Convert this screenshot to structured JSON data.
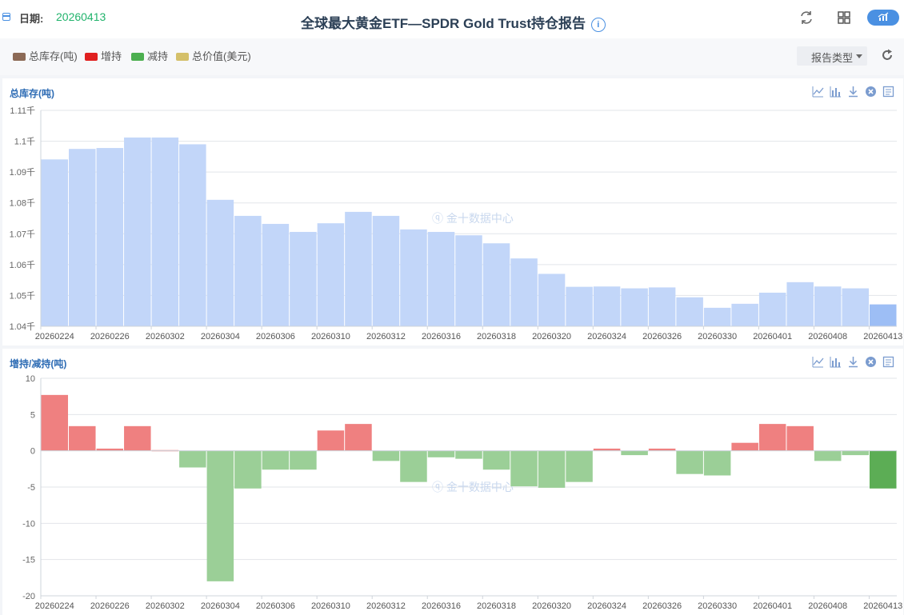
{
  "header": {
    "date_label": "日期:",
    "date_value": "20260413",
    "title": "全球最大黄金ETF—SPDR Gold Trust持仓报告",
    "info_symbol": "i"
  },
  "legend": {
    "items": [
      {
        "label": "总库存(吨)",
        "color": "#8c6a56"
      },
      {
        "label": "增持",
        "color": "#e02020"
      },
      {
        "label": "减持",
        "color": "#4caf50"
      },
      {
        "label": "总价值(美元)",
        "color": "#d4c06a"
      }
    ],
    "report_type": "报告类型"
  },
  "watermark": "金十数据中心",
  "colors": {
    "accent": "#4a90e2",
    "bar": "#c2d6f9",
    "bar_last": "#9dbef5",
    "increase": "#ef8080",
    "decrease": "#9bcf97",
    "decrease_last": "#5cad55",
    "title": "#2f6db5"
  },
  "icons": [
    "refresh-icon",
    "grid-icon",
    "chart-toggle-icon",
    "reload-icon",
    "line-chart-icon",
    "bar-chart-icon",
    "download-icon",
    "close-icon",
    "data-view-icon"
  ],
  "chart_data": [
    {
      "type": "bar",
      "title": "总库存(吨)",
      "x": [
        "20260224",
        "20260225",
        "20260226",
        "20260227",
        "20260302",
        "20260303",
        "20260304",
        "20260305",
        "20260306",
        "20260309",
        "20260310",
        "20260311",
        "20260312",
        "20260313",
        "20260316",
        "20260317",
        "20260318",
        "20260319",
        "20260320",
        "20260323",
        "20260324",
        "20260325",
        "20260326",
        "20260327",
        "20260330",
        "20260331",
        "20260401",
        "20260402",
        "20260408",
        "20260409",
        "20260413"
      ],
      "x_tick_labels": [
        "20260224",
        "20260226",
        "20260302",
        "20260304",
        "20260306",
        "20260310",
        "20260312",
        "20260316",
        "20260318",
        "20260320",
        "20260324",
        "20260326",
        "20260330",
        "20260401",
        "20260408",
        "20260413"
      ],
      "values": [
        1094.1,
        1097.5,
        1097.8,
        1101.2,
        1101.2,
        1099.0,
        1081.0,
        1075.8,
        1073.2,
        1070.6,
        1073.4,
        1077.1,
        1075.8,
        1071.4,
        1070.6,
        1069.5,
        1066.9,
        1062.0,
        1057.0,
        1052.8,
        1052.9,
        1052.3,
        1052.6,
        1049.4,
        1046.0,
        1047.3,
        1050.9,
        1054.3,
        1052.9,
        1052.3,
        1047.1
      ],
      "y_ticks": [
        "1.04千",
        "1.05千",
        "1.06千",
        "1.07千",
        "1.08千",
        "1.09千",
        "1.1千",
        "1.11千"
      ],
      "ylim": [
        1040,
        1110
      ],
      "grid": true
    },
    {
      "type": "bar",
      "title": "增持/减持(吨)",
      "x": [
        "20260224",
        "20260225",
        "20260226",
        "20260227",
        "20260302",
        "20260303",
        "20260304",
        "20260305",
        "20260306",
        "20260309",
        "20260310",
        "20260311",
        "20260312",
        "20260313",
        "20260316",
        "20260317",
        "20260318",
        "20260319",
        "20260320",
        "20260323",
        "20260324",
        "20260325",
        "20260326",
        "20260327",
        "20260330",
        "20260331",
        "20260401",
        "20260402",
        "20260408",
        "20260409",
        "20260413"
      ],
      "x_tick_labels": [
        "20260224",
        "20260226",
        "20260302",
        "20260304",
        "20260306",
        "20260310",
        "20260312",
        "20260316",
        "20260318",
        "20260320",
        "20260324",
        "20260326",
        "20260330",
        "20260401",
        "20260408",
        "20260413"
      ],
      "values": [
        7.7,
        3.4,
        0.3,
        3.4,
        0.1,
        -2.3,
        -18.0,
        -5.2,
        -2.6,
        -2.6,
        2.8,
        3.7,
        -1.4,
        -4.3,
        -0.9,
        -1.1,
        -2.6,
        -4.9,
        -5.1,
        -4.3,
        0.3,
        -0.6,
        0.3,
        -3.2,
        -3.4,
        1.1,
        3.7,
        3.4,
        -1.4,
        -0.6,
        -5.2
      ],
      "y_ticks": [
        "-20",
        "-15",
        "-10",
        "-5",
        "0",
        "5",
        "10"
      ],
      "ylim": [
        -20,
        10
      ],
      "grid": true
    }
  ]
}
